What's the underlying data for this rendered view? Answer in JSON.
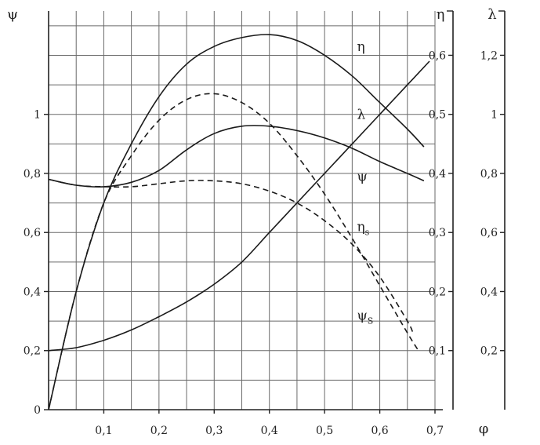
{
  "chart_data": {
    "type": "line",
    "title": "",
    "xlabel": "φ",
    "xlim": [
      0,
      0.7
    ],
    "x_ticks": [
      "0,1",
      "0,2",
      "0,3",
      "0,4",
      "0,5",
      "0,6",
      "0,7"
    ],
    "x_tick_values": [
      0.1,
      0.2,
      0.3,
      0.4,
      0.5,
      0.6,
      0.7
    ],
    "grid": true,
    "axes": {
      "psi": {
        "label": "ψ",
        "position": "left",
        "lim": [
          0,
          1.35
        ],
        "ticks": [
          "0",
          "0,2",
          "0,4",
          "0,6",
          "0,8",
          "1"
        ],
        "tick_values": [
          0,
          0.2,
          0.4,
          0.6,
          0.8,
          1.0
        ]
      },
      "eta": {
        "label": "η",
        "position": "right-inner",
        "lim": [
          0,
          0.675
        ],
        "ticks": [
          "0,1",
          "0,2",
          "0,3",
          "0,4",
          "0,5",
          "0,6"
        ],
        "tick_values": [
          0.1,
          0.2,
          0.3,
          0.4,
          0.5,
          0.6
        ]
      },
      "lambda": {
        "label": "λ",
        "position": "right-outer",
        "lim": [
          0,
          1.35
        ],
        "ticks": [
          "0,2",
          "0,4",
          "0,6",
          "0,8",
          "1",
          "1,2"
        ],
        "tick_values": [
          0.2,
          0.4,
          0.6,
          0.8,
          1.0,
          1.2
        ]
      }
    },
    "series": [
      {
        "name": "η",
        "axis": "eta",
        "style": "solid",
        "label_at": [
          0.57,
          0.615
        ],
        "x": [
          0,
          0.05,
          0.1,
          0.15,
          0.2,
          0.25,
          0.3,
          0.35,
          0.4,
          0.45,
          0.5,
          0.55,
          0.6,
          0.65,
          0.68
        ],
        "y": [
          0,
          0.2,
          0.35,
          0.45,
          0.53,
          0.585,
          0.615,
          0.63,
          0.635,
          0.625,
          0.6,
          0.565,
          0.52,
          0.475,
          0.445
        ]
      },
      {
        "name": "λ",
        "axis": "lambda",
        "style": "solid",
        "label_at": [
          0.57,
          1.0
        ],
        "x": [
          0,
          0.05,
          0.1,
          0.15,
          0.2,
          0.25,
          0.3,
          0.35,
          0.4,
          0.45,
          0.5,
          0.55,
          0.6,
          0.65,
          0.69
        ],
        "y": [
          0.2,
          0.21,
          0.235,
          0.27,
          0.315,
          0.365,
          0.425,
          0.5,
          0.6,
          0.7,
          0.8,
          0.9,
          1.0,
          1.1,
          1.18
        ]
      },
      {
        "name": "ψ",
        "axis": "psi",
        "style": "solid",
        "label_at": [
          0.57,
          0.79
        ],
        "x": [
          0,
          0.05,
          0.1,
          0.15,
          0.2,
          0.25,
          0.3,
          0.35,
          0.4,
          0.45,
          0.5,
          0.55,
          0.6,
          0.65,
          0.68
        ],
        "y": [
          0.78,
          0.76,
          0.755,
          0.77,
          0.81,
          0.88,
          0.935,
          0.96,
          0.96,
          0.945,
          0.92,
          0.885,
          0.84,
          0.8,
          0.775
        ]
      },
      {
        "name": "η",
        "subscript": "s",
        "axis": "eta",
        "style": "dashed",
        "label_at": [
          0.57,
          0.31
        ],
        "x": [
          0,
          0.05,
          0.1,
          0.15,
          0.2,
          0.25,
          0.3,
          0.35,
          0.4,
          0.45,
          0.5,
          0.55,
          0.6,
          0.65,
          0.67
        ],
        "y": [
          0,
          0.2,
          0.35,
          0.43,
          0.49,
          0.525,
          0.535,
          0.52,
          0.485,
          0.43,
          0.365,
          0.29,
          0.21,
          0.13,
          0.1
        ]
      },
      {
        "name": "ψ",
        "subscript": "S",
        "axis": "psi",
        "style": "dashed",
        "label_at": [
          0.57,
          0.32
        ],
        "x": [
          0,
          0.05,
          0.1,
          0.15,
          0.2,
          0.25,
          0.3,
          0.35,
          0.4,
          0.45,
          0.5,
          0.55,
          0.6,
          0.65,
          0.66
        ],
        "y": [
          0.78,
          0.76,
          0.755,
          0.755,
          0.765,
          0.775,
          0.775,
          0.765,
          0.74,
          0.7,
          0.64,
          0.56,
          0.45,
          0.3,
          0.26
        ]
      }
    ]
  }
}
